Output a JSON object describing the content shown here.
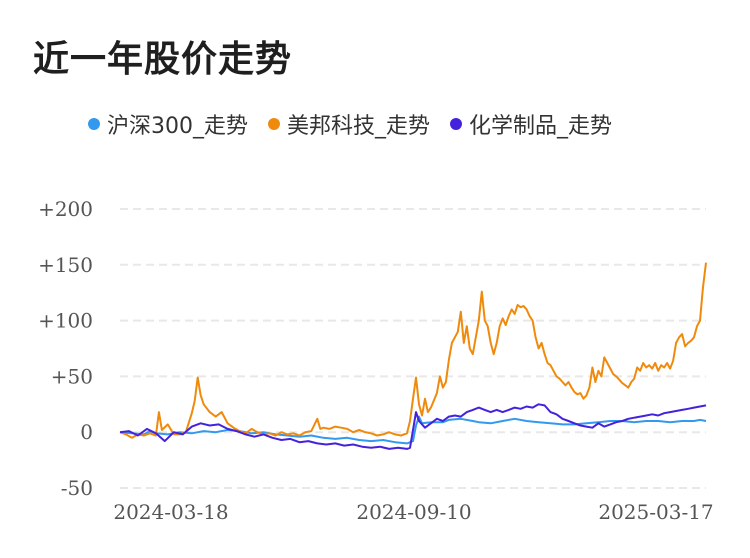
{
  "title": "近一年股价走势",
  "chart_data": {
    "type": "line",
    "title": "近一年股价走势",
    "ylim": [
      -50,
      200
    ],
    "y_ticks": [
      "+200",
      "+150",
      "+100",
      "+50",
      "0",
      "-50"
    ],
    "y_tick_values": [
      200,
      150,
      100,
      50,
      0,
      -50
    ],
    "x_ticks": [
      "2024-03-18",
      "2024-09-10",
      "2025-03-17"
    ],
    "grid": true,
    "legend_position": "top",
    "series": [
      {
        "name": "沪深300_走势",
        "color": "#3399ee",
        "points": [
          [
            0,
            0
          ],
          [
            4,
            -1
          ],
          [
            8,
            -2
          ],
          [
            10,
            1
          ],
          [
            12,
            -1
          ],
          [
            16,
            -2
          ],
          [
            20,
            0
          ],
          [
            24,
            -1
          ],
          [
            28,
            1
          ],
          [
            32,
            0
          ],
          [
            36,
            2
          ],
          [
            40,
            1
          ],
          [
            44,
            -1
          ],
          [
            48,
            0
          ],
          [
            52,
            -2
          ],
          [
            56,
            -3
          ],
          [
            60,
            -4
          ],
          [
            64,
            -3
          ],
          [
            68,
            -5
          ],
          [
            72,
            -6
          ],
          [
            76,
            -5
          ],
          [
            80,
            -7
          ],
          [
            84,
            -8
          ],
          [
            88,
            -7
          ],
          [
            92,
            -9
          ],
          [
            96,
            -10
          ],
          [
            98,
            -8
          ],
          [
            99,
            6
          ],
          [
            100,
            14
          ],
          [
            101,
            8
          ],
          [
            104,
            9
          ],
          [
            108,
            9
          ],
          [
            110,
            11
          ],
          [
            114,
            12
          ],
          [
            118,
            10
          ],
          [
            120,
            9
          ],
          [
            124,
            8
          ],
          [
            128,
            10
          ],
          [
            132,
            12
          ],
          [
            136,
            10
          ],
          [
            140,
            9
          ],
          [
            144,
            8
          ],
          [
            148,
            7
          ],
          [
            152,
            7
          ],
          [
            156,
            8
          ],
          [
            160,
            9
          ],
          [
            164,
            10
          ],
          [
            168,
            10
          ],
          [
            172,
            9
          ],
          [
            176,
            10
          ],
          [
            180,
            10
          ],
          [
            184,
            9
          ],
          [
            188,
            10
          ],
          [
            192,
            10
          ],
          [
            194,
            11
          ],
          [
            196,
            10
          ]
        ]
      },
      {
        "name": "美邦科技_走势",
        "color": "#f08a0c",
        "points": [
          [
            0,
            0
          ],
          [
            2,
            -2
          ],
          [
            4,
            -5
          ],
          [
            6,
            -2
          ],
          [
            8,
            -3
          ],
          [
            10,
            -1
          ],
          [
            12,
            -3
          ],
          [
            13,
            18
          ],
          [
            14,
            2
          ],
          [
            16,
            7
          ],
          [
            18,
            -2
          ],
          [
            20,
            -2
          ],
          [
            22,
            0
          ],
          [
            24,
            17
          ],
          [
            25,
            28
          ],
          [
            26,
            49
          ],
          [
            27,
            33
          ],
          [
            28,
            25
          ],
          [
            30,
            18
          ],
          [
            32,
            14
          ],
          [
            34,
            18
          ],
          [
            36,
            8
          ],
          [
            38,
            4
          ],
          [
            40,
            1
          ],
          [
            42,
            -1
          ],
          [
            44,
            3
          ],
          [
            46,
            0
          ],
          [
            48,
            -2
          ],
          [
            50,
            -1
          ],
          [
            52,
            -3
          ],
          [
            54,
            0
          ],
          [
            56,
            -2
          ],
          [
            58,
            -1
          ],
          [
            60,
            -3
          ],
          [
            62,
            0
          ],
          [
            64,
            1
          ],
          [
            66,
            12
          ],
          [
            67,
            3
          ],
          [
            68,
            4
          ],
          [
            70,
            3
          ],
          [
            72,
            5
          ],
          [
            74,
            4
          ],
          [
            76,
            3
          ],
          [
            78,
            0
          ],
          [
            80,
            2
          ],
          [
            82,
            0
          ],
          [
            84,
            -1
          ],
          [
            86,
            -3
          ],
          [
            88,
            -2
          ],
          [
            90,
            0
          ],
          [
            92,
            -2
          ],
          [
            94,
            -3
          ],
          [
            96,
            -1
          ],
          [
            97,
            10
          ],
          [
            98,
            30
          ],
          [
            99,
            49
          ],
          [
            100,
            25
          ],
          [
            101,
            15
          ],
          [
            102,
            30
          ],
          [
            103,
            18
          ],
          [
            104,
            22
          ],
          [
            106,
            35
          ],
          [
            107,
            50
          ],
          [
            108,
            40
          ],
          [
            109,
            45
          ],
          [
            110,
            65
          ],
          [
            111,
            80
          ],
          [
            112,
            85
          ],
          [
            113,
            90
          ],
          [
            114,
            108
          ],
          [
            115,
            80
          ],
          [
            116,
            95
          ],
          [
            117,
            75
          ],
          [
            118,
            70
          ],
          [
            119,
            85
          ],
          [
            120,
            100
          ],
          [
            121,
            126
          ],
          [
            122,
            100
          ],
          [
            123,
            95
          ],
          [
            124,
            80
          ],
          [
            125,
            70
          ],
          [
            126,
            80
          ],
          [
            127,
            95
          ],
          [
            128,
            102
          ],
          [
            129,
            96
          ],
          [
            130,
            104
          ],
          [
            131,
            110
          ],
          [
            132,
            106
          ],
          [
            133,
            114
          ],
          [
            134,
            112
          ],
          [
            135,
            113
          ],
          [
            136,
            110
          ],
          [
            137,
            104
          ],
          [
            138,
            100
          ],
          [
            139,
            85
          ],
          [
            140,
            75
          ],
          [
            141,
            80
          ],
          [
            142,
            70
          ],
          [
            143,
            62
          ],
          [
            144,
            60
          ],
          [
            145,
            55
          ],
          [
            146,
            50
          ],
          [
            147,
            48
          ],
          [
            148,
            45
          ],
          [
            149,
            42
          ],
          [
            150,
            45
          ],
          [
            151,
            40
          ],
          [
            152,
            36
          ],
          [
            153,
            34
          ],
          [
            154,
            35
          ],
          [
            155,
            30
          ],
          [
            156,
            33
          ],
          [
            157,
            40
          ],
          [
            158,
            58
          ],
          [
            159,
            45
          ],
          [
            160,
            55
          ],
          [
            161,
            50
          ],
          [
            162,
            67
          ],
          [
            163,
            62
          ],
          [
            164,
            57
          ],
          [
            165,
            52
          ],
          [
            166,
            50
          ],
          [
            167,
            47
          ],
          [
            168,
            44
          ],
          [
            169,
            42
          ],
          [
            170,
            40
          ],
          [
            171,
            45
          ],
          [
            172,
            48
          ],
          [
            173,
            58
          ],
          [
            174,
            55
          ],
          [
            175,
            62
          ],
          [
            176,
            58
          ],
          [
            177,
            60
          ],
          [
            178,
            57
          ],
          [
            179,
            62
          ],
          [
            180,
            55
          ],
          [
            181,
            60
          ],
          [
            182,
            58
          ],
          [
            183,
            62
          ],
          [
            184,
            57
          ],
          [
            185,
            64
          ],
          [
            186,
            80
          ],
          [
            187,
            85
          ],
          [
            188,
            88
          ],
          [
            189,
            77
          ],
          [
            190,
            80
          ],
          [
            191,
            82
          ],
          [
            192,
            85
          ],
          [
            193,
            95
          ],
          [
            194,
            100
          ],
          [
            195,
            130
          ],
          [
            196,
            152
          ]
        ]
      },
      {
        "name": "化学制品_走势",
        "color": "#4422dd",
        "points": [
          [
            0,
            0
          ],
          [
            3,
            1
          ],
          [
            6,
            -3
          ],
          [
            9,
            3
          ],
          [
            12,
            -1
          ],
          [
            15,
            -8
          ],
          [
            18,
            0
          ],
          [
            21,
            -2
          ],
          [
            24,
            5
          ],
          [
            27,
            8
          ],
          [
            30,
            6
          ],
          [
            33,
            7
          ],
          [
            36,
            3
          ],
          [
            39,
            1
          ],
          [
            42,
            -2
          ],
          [
            45,
            -4
          ],
          [
            48,
            -2
          ],
          [
            51,
            -5
          ],
          [
            54,
            -7
          ],
          [
            57,
            -6
          ],
          [
            60,
            -9
          ],
          [
            63,
            -8
          ],
          [
            66,
            -10
          ],
          [
            69,
            -11
          ],
          [
            72,
            -10
          ],
          [
            75,
            -12
          ],
          [
            78,
            -11
          ],
          [
            81,
            -13
          ],
          [
            84,
            -14
          ],
          [
            87,
            -13
          ],
          [
            90,
            -15
          ],
          [
            93,
            -14
          ],
          [
            96,
            -15
          ],
          [
            97,
            -14
          ],
          [
            98,
            2
          ],
          [
            99,
            18
          ],
          [
            100,
            10
          ],
          [
            102,
            4
          ],
          [
            104,
            8
          ],
          [
            106,
            12
          ],
          [
            108,
            10
          ],
          [
            110,
            14
          ],
          [
            112,
            15
          ],
          [
            114,
            14
          ],
          [
            116,
            18
          ],
          [
            118,
            20
          ],
          [
            120,
            22
          ],
          [
            122,
            20
          ],
          [
            124,
            18
          ],
          [
            126,
            20
          ],
          [
            128,
            18
          ],
          [
            130,
            20
          ],
          [
            132,
            22
          ],
          [
            134,
            21
          ],
          [
            136,
            23
          ],
          [
            138,
            22
          ],
          [
            140,
            25
          ],
          [
            142,
            24
          ],
          [
            144,
            18
          ],
          [
            146,
            16
          ],
          [
            148,
            12
          ],
          [
            150,
            10
          ],
          [
            152,
            8
          ],
          [
            154,
            6
          ],
          [
            156,
            5
          ],
          [
            158,
            4
          ],
          [
            160,
            8
          ],
          [
            162,
            5
          ],
          [
            164,
            7
          ],
          [
            166,
            9
          ],
          [
            168,
            10
          ],
          [
            170,
            12
          ],
          [
            172,
            13
          ],
          [
            174,
            14
          ],
          [
            176,
            15
          ],
          [
            178,
            16
          ],
          [
            180,
            15
          ],
          [
            182,
            17
          ],
          [
            184,
            18
          ],
          [
            186,
            19
          ],
          [
            188,
            20
          ],
          [
            190,
            21
          ],
          [
            192,
            22
          ],
          [
            194,
            23
          ],
          [
            196,
            24
          ]
        ]
      }
    ]
  }
}
